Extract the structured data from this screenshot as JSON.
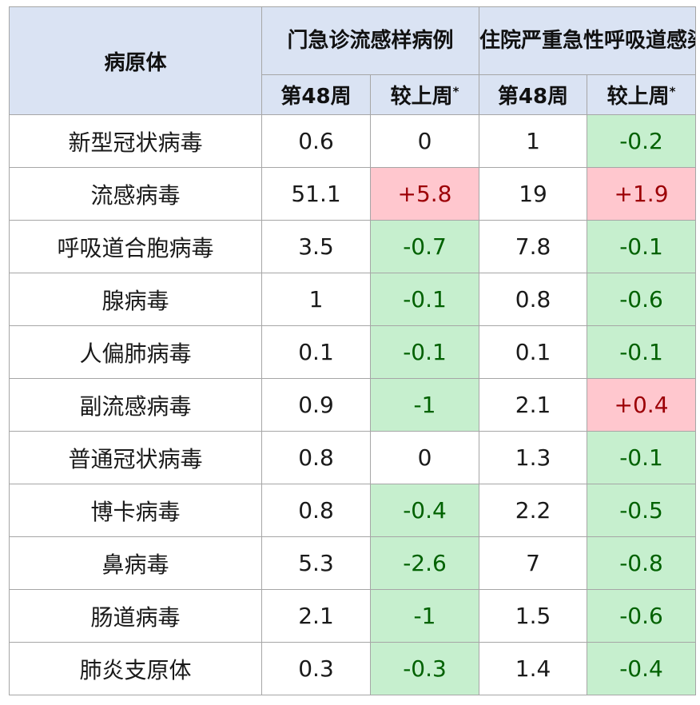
{
  "table": {
    "header": {
      "pathogen_label": "病原体",
      "outpatient_group": "门急诊流感样病例",
      "inpatient_group": "住院严重急性呼吸道感染病例",
      "week_label": "第48周",
      "change_label": "较上周",
      "change_mark": "*"
    },
    "colors": {
      "header_bg": "#dae3f3",
      "decrease_bg": "#c6efce",
      "decrease_text": "#006100",
      "increase_bg": "#ffc7ce",
      "increase_text": "#9c0006"
    },
    "rows": [
      {
        "name": "新型冠状病毒",
        "op_week": "0.6",
        "op_change": "0",
        "ip_week": "1",
        "ip_change": "-0.2"
      },
      {
        "name": "流感病毒",
        "op_week": "51.1",
        "op_change": "+5.8",
        "ip_week": "19",
        "ip_change": "+1.9"
      },
      {
        "name": "呼吸道合胞病毒",
        "op_week": "3.5",
        "op_change": "-0.7",
        "ip_week": "7.8",
        "ip_change": "-0.1"
      },
      {
        "name": "腺病毒",
        "op_week": "1",
        "op_change": "-0.1",
        "ip_week": "0.8",
        "ip_change": "-0.6"
      },
      {
        "name": "人偏肺病毒",
        "op_week": "0.1",
        "op_change": "-0.1",
        "ip_week": "0.1",
        "ip_change": "-0.1"
      },
      {
        "name": "副流感病毒",
        "op_week": "0.9",
        "op_change": "-1",
        "ip_week": "2.1",
        "ip_change": "+0.4"
      },
      {
        "name": "普通冠状病毒",
        "op_week": "0.8",
        "op_change": "0",
        "ip_week": "1.3",
        "ip_change": "-0.1"
      },
      {
        "name": "博卡病毒",
        "op_week": "0.8",
        "op_change": "-0.4",
        "ip_week": "2.2",
        "ip_change": "-0.5"
      },
      {
        "name": "鼻病毒",
        "op_week": "5.3",
        "op_change": "-2.6",
        "ip_week": "7",
        "ip_change": "-0.8"
      },
      {
        "name": "肠道病毒",
        "op_week": "2.1",
        "op_change": "-1",
        "ip_week": "1.5",
        "ip_change": "-0.6"
      },
      {
        "name": "肺炎支原体",
        "op_week": "0.3",
        "op_change": "-0.3",
        "ip_week": "1.4",
        "ip_change": "-0.4"
      }
    ]
  }
}
